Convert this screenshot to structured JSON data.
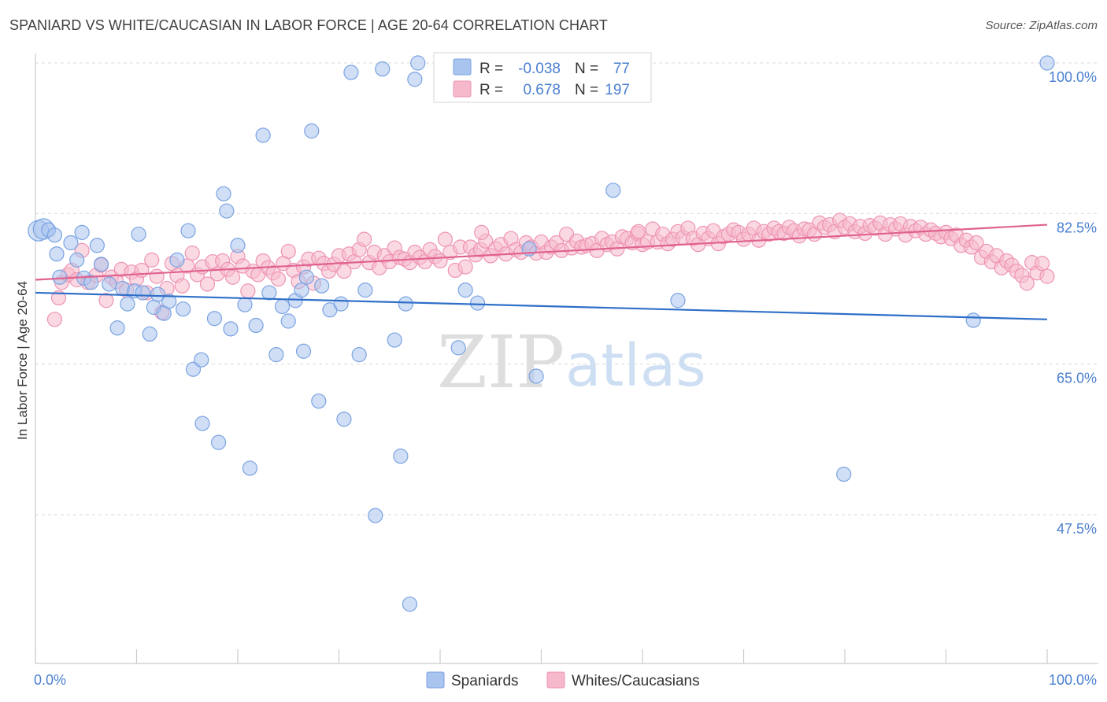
{
  "header": {
    "title": "SPANIARD VS WHITE/CAUCASIAN IN LABOR FORCE | AGE 20-64 CORRELATION CHART",
    "source": "Source: ZipAtlas.com"
  },
  "colors": {
    "blue_fill": "#a9c4ee",
    "blue_stroke": "#7aa3e2",
    "blue_line": "#2f6fc8",
    "pink_fill": "#f6b9cc",
    "pink_stroke": "#ee94b2",
    "pink_line": "#e0628f",
    "grid": "#d9d9d9",
    "tick_text": "#4a7fd0"
  },
  "legend_box": {
    "rows": [
      {
        "r_label": "R =",
        "r_value": "-0.038",
        "n_label": "N =",
        "n_value": "77",
        "color": "blue"
      },
      {
        "r_label": "R =",
        "r_value": "0.678",
        "n_label": "N =",
        "n_value": "197",
        "color": "pink"
      }
    ]
  },
  "chart_data": {
    "type": "scatter",
    "title": "SPANIARD VS WHITE/CAUCASIAN IN LABOR FORCE | AGE 20-64 CORRELATION CHART",
    "xlabel": "",
    "ylabel": "In Labor Force | Age 20-64",
    "xlim": [
      0,
      100
    ],
    "ylim": [
      29.5,
      101.5
    ],
    "x_tick_labels": [
      "0.0%",
      "100.0%"
    ],
    "y_ticks": [
      47.5,
      65.0,
      82.5,
      100.0
    ],
    "y_tick_labels": [
      "47.5%",
      "65.0%",
      "82.5%",
      "100.0%"
    ],
    "grid": true,
    "legend": "bottom-center",
    "watermark": "ZIPatlas",
    "series": [
      {
        "name": "Spaniards",
        "color": "blue",
        "trend": {
          "x": [
            0,
            100
          ],
          "y": [
            73.3,
            70.2
          ]
        },
        "points": [
          [
            0.3,
            80.5
          ],
          [
            0.8,
            80.7
          ],
          [
            1.3,
            80.6
          ],
          [
            1.9,
            80.0
          ],
          [
            2.1,
            77.8
          ],
          [
            2.4,
            75.1
          ],
          [
            3.5,
            79.1
          ],
          [
            4.1,
            77.1
          ],
          [
            4.6,
            80.3
          ],
          [
            4.8,
            75.0
          ],
          [
            5.5,
            74.5
          ],
          [
            6.1,
            78.8
          ],
          [
            6.5,
            76.6
          ],
          [
            7.3,
            74.3
          ],
          [
            8.1,
            69.2
          ],
          [
            8.6,
            73.8
          ],
          [
            9.1,
            72.0
          ],
          [
            9.8,
            73.5
          ],
          [
            10.2,
            80.1
          ],
          [
            10.6,
            73.3
          ],
          [
            11.3,
            68.5
          ],
          [
            11.7,
            71.6
          ],
          [
            12.1,
            73.1
          ],
          [
            12.7,
            70.9
          ],
          [
            13.2,
            72.3
          ],
          [
            14.0,
            77.1
          ],
          [
            14.6,
            71.4
          ],
          [
            15.1,
            80.5
          ],
          [
            15.6,
            64.4
          ],
          [
            16.5,
            58.1
          ],
          [
            16.4,
            65.5
          ],
          [
            17.7,
            70.3
          ],
          [
            18.1,
            55.9
          ],
          [
            18.6,
            84.8
          ],
          [
            18.9,
            82.8
          ],
          [
            19.3,
            69.1
          ],
          [
            20.0,
            78.8
          ],
          [
            20.7,
            71.9
          ],
          [
            21.2,
            52.9
          ],
          [
            21.8,
            69.5
          ],
          [
            22.5,
            91.6
          ],
          [
            23.1,
            73.3
          ],
          [
            23.8,
            66.1
          ],
          [
            24.4,
            71.7
          ],
          [
            25.0,
            70.0
          ],
          [
            25.7,
            72.4
          ],
          [
            26.3,
            73.6
          ],
          [
            26.5,
            66.5
          ],
          [
            26.8,
            75.1
          ],
          [
            27.3,
            92.1
          ],
          [
            28.0,
            60.7
          ],
          [
            28.3,
            74.1
          ],
          [
            29.1,
            71.3
          ],
          [
            30.2,
            72.0
          ],
          [
            30.5,
            58.6
          ],
          [
            31.2,
            98.9
          ],
          [
            32.0,
            66.1
          ],
          [
            32.6,
            73.6
          ],
          [
            33.6,
            47.4
          ],
          [
            34.3,
            99.3
          ],
          [
            35.5,
            67.8
          ],
          [
            36.1,
            54.3
          ],
          [
            36.6,
            72.0
          ],
          [
            37.0,
            37.1
          ],
          [
            37.5,
            98.1
          ],
          [
            37.8,
            100.0
          ],
          [
            41.8,
            66.9
          ],
          [
            42.5,
            73.6
          ],
          [
            43.7,
            72.1
          ],
          [
            48.8,
            78.4
          ],
          [
            49.5,
            63.6
          ],
          [
            57.1,
            85.2
          ],
          [
            63.5,
            72.4
          ],
          [
            79.9,
            52.2
          ],
          [
            92.7,
            70.1
          ],
          [
            100.0,
            100.0
          ]
        ]
      },
      {
        "name": "Whites/Caucasians",
        "color": "pink",
        "trend": {
          "x": [
            0,
            100
          ],
          "y": [
            74.8,
            81.2
          ]
        },
        "points": [
          [
            1.9,
            70.2
          ],
          [
            2.3,
            72.7
          ],
          [
            2.6,
            74.5
          ],
          [
            3.2,
            75.4
          ],
          [
            3.6,
            75.9
          ],
          [
            4.1,
            74.8
          ],
          [
            4.6,
            78.2
          ],
          [
            5.2,
            74.5
          ],
          [
            6.0,
            75.3
          ],
          [
            6.5,
            76.5
          ],
          [
            7.0,
            72.4
          ],
          [
            7.5,
            75.1
          ],
          [
            8.0,
            74.6
          ],
          [
            8.5,
            76.0
          ],
          [
            9.0,
            73.6
          ],
          [
            9.5,
            75.7
          ],
          [
            10.0,
            74.9
          ],
          [
            10.5,
            75.9
          ],
          [
            11.0,
            73.3
          ],
          [
            11.5,
            77.1
          ],
          [
            12.0,
            75.2
          ],
          [
            12.5,
            71.0
          ],
          [
            13.0,
            73.8
          ],
          [
            13.5,
            76.7
          ],
          [
            14.0,
            75.3
          ],
          [
            14.5,
            74.1
          ],
          [
            15.0,
            76.4
          ],
          [
            15.5,
            77.9
          ],
          [
            16.0,
            75.4
          ],
          [
            16.5,
            76.3
          ],
          [
            17.0,
            74.3
          ],
          [
            17.5,
            76.9
          ],
          [
            18.0,
            75.5
          ],
          [
            18.5,
            77.0
          ],
          [
            19.0,
            76.0
          ],
          [
            19.5,
            75.1
          ],
          [
            20.0,
            77.5
          ],
          [
            20.5,
            76.4
          ],
          [
            21.0,
            73.5
          ],
          [
            21.5,
            75.8
          ],
          [
            22.0,
            75.4
          ],
          [
            22.5,
            77.0
          ],
          [
            23.0,
            76.2
          ],
          [
            23.5,
            75.6
          ],
          [
            24.0,
            74.9
          ],
          [
            24.5,
            76.7
          ],
          [
            25.0,
            78.1
          ],
          [
            25.5,
            75.9
          ],
          [
            26.0,
            74.6
          ],
          [
            26.5,
            76.3
          ],
          [
            27.0,
            77.2
          ],
          [
            27.5,
            74.4
          ],
          [
            28.0,
            77.3
          ],
          [
            28.5,
            76.7
          ],
          [
            29.0,
            75.8
          ],
          [
            29.5,
            76.6
          ],
          [
            30.0,
            77.6
          ],
          [
            30.5,
            75.8
          ],
          [
            31.0,
            77.8
          ],
          [
            31.5,
            76.9
          ],
          [
            32.0,
            78.3
          ],
          [
            32.5,
            79.5
          ],
          [
            33.0,
            76.8
          ],
          [
            33.5,
            78.0
          ],
          [
            34.0,
            76.2
          ],
          [
            34.5,
            77.6
          ],
          [
            35.0,
            76.9
          ],
          [
            35.5,
            78.5
          ],
          [
            36.0,
            77.4
          ],
          [
            36.5,
            77.2
          ],
          [
            37.0,
            76.8
          ],
          [
            37.5,
            78.0
          ],
          [
            38.0,
            77.4
          ],
          [
            38.5,
            76.9
          ],
          [
            39.0,
            78.3
          ],
          [
            39.5,
            77.5
          ],
          [
            40.0,
            77.0
          ],
          [
            40.5,
            79.5
          ],
          [
            41.0,
            78.0
          ],
          [
            41.5,
            75.9
          ],
          [
            42.0,
            78.6
          ],
          [
            42.5,
            76.3
          ],
          [
            43.0,
            78.6
          ],
          [
            43.5,
            77.7
          ],
          [
            44.0,
            78.3
          ],
          [
            44.5,
            79.3
          ],
          [
            45.0,
            77.6
          ],
          [
            45.5,
            78.4
          ],
          [
            46.0,
            78.9
          ],
          [
            46.5,
            77.8
          ],
          [
            47.0,
            79.6
          ],
          [
            47.5,
            78.3
          ],
          [
            48.0,
            78.0
          ],
          [
            48.5,
            79.1
          ],
          [
            49.0,
            78.6
          ],
          [
            49.5,
            77.9
          ],
          [
            50.0,
            79.2
          ],
          [
            50.5,
            78.0
          ],
          [
            51.0,
            78.6
          ],
          [
            51.5,
            79.1
          ],
          [
            52.0,
            78.2
          ],
          [
            52.5,
            80.1
          ],
          [
            53.0,
            78.5
          ],
          [
            53.5,
            79.3
          ],
          [
            54.0,
            78.6
          ],
          [
            54.5,
            78.8
          ],
          [
            55.0,
            79.0
          ],
          [
            55.5,
            78.2
          ],
          [
            56.0,
            79.6
          ],
          [
            56.5,
            78.9
          ],
          [
            57.0,
            79.2
          ],
          [
            57.5,
            78.4
          ],
          [
            58.0,
            79.8
          ],
          [
            58.5,
            79.6
          ],
          [
            59.0,
            79.1
          ],
          [
            59.5,
            80.2
          ],
          [
            60.0,
            78.9
          ],
          [
            60.5,
            79.2
          ],
          [
            61.0,
            80.7
          ],
          [
            61.5,
            79.2
          ],
          [
            62.0,
            80.1
          ],
          [
            62.5,
            79.0
          ],
          [
            63.0,
            79.5
          ],
          [
            63.5,
            80.4
          ],
          [
            64.0,
            79.7
          ],
          [
            64.5,
            80.8
          ],
          [
            65.0,
            79.6
          ],
          [
            65.5,
            78.9
          ],
          [
            66.0,
            80.2
          ],
          [
            66.5,
            79.6
          ],
          [
            67.0,
            80.5
          ],
          [
            67.5,
            79.0
          ],
          [
            68.0,
            79.8
          ],
          [
            68.5,
            80.1
          ],
          [
            69.0,
            80.6
          ],
          [
            69.5,
            80.3
          ],
          [
            70.0,
            79.5
          ],
          [
            70.5,
            80.1
          ],
          [
            71.0,
            80.8
          ],
          [
            71.5,
            79.4
          ],
          [
            72.0,
            80.4
          ],
          [
            72.5,
            80.1
          ],
          [
            73.0,
            80.8
          ],
          [
            73.5,
            80.4
          ],
          [
            74.0,
            80.2
          ],
          [
            74.5,
            80.9
          ],
          [
            75.0,
            80.5
          ],
          [
            75.5,
            79.9
          ],
          [
            76.0,
            80.7
          ],
          [
            76.5,
            80.6
          ],
          [
            77.0,
            80.1
          ],
          [
            77.5,
            81.4
          ],
          [
            78.0,
            80.9
          ],
          [
            78.5,
            81.2
          ],
          [
            79.0,
            80.4
          ],
          [
            79.5,
            81.7
          ],
          [
            80.0,
            80.9
          ],
          [
            80.5,
            81.3
          ],
          [
            81.0,
            80.4
          ],
          [
            81.5,
            81.0
          ],
          [
            82.0,
            80.2
          ],
          [
            82.5,
            81.1
          ],
          [
            83.0,
            80.8
          ],
          [
            83.5,
            81.4
          ],
          [
            84.0,
            80.1
          ],
          [
            84.5,
            81.2
          ],
          [
            85.0,
            80.7
          ],
          [
            85.5,
            81.3
          ],
          [
            86.0,
            80.0
          ],
          [
            86.5,
            81.0
          ],
          [
            87.0,
            80.5
          ],
          [
            87.5,
            80.9
          ],
          [
            88.0,
            80.1
          ],
          [
            88.5,
            80.6
          ],
          [
            89.0,
            80.2
          ],
          [
            89.5,
            79.8
          ],
          [
            90.0,
            80.3
          ],
          [
            90.5,
            79.6
          ],
          [
            91.0,
            80.0
          ],
          [
            91.5,
            78.8
          ],
          [
            92.0,
            79.4
          ],
          [
            92.5,
            78.6
          ],
          [
            93.0,
            79.1
          ],
          [
            93.5,
            77.4
          ],
          [
            94.0,
            78.1
          ],
          [
            94.5,
            76.9
          ],
          [
            95.0,
            77.6
          ],
          [
            95.5,
            76.2
          ],
          [
            96.0,
            77.0
          ],
          [
            96.5,
            76.5
          ],
          [
            97.0,
            75.8
          ],
          [
            97.5,
            75.3
          ],
          [
            98.0,
            74.4
          ],
          [
            98.5,
            76.8
          ],
          [
            99.0,
            75.6
          ],
          [
            99.5,
            76.7
          ],
          [
            100.0,
            75.2
          ],
          [
            59.6,
            80.4
          ],
          [
            44.1,
            80.3
          ]
        ]
      }
    ]
  },
  "bottom_legend": {
    "items": [
      {
        "label": "Spaniards",
        "color": "blue"
      },
      {
        "label": "Whites/Caucasians",
        "color": "pink"
      }
    ]
  }
}
